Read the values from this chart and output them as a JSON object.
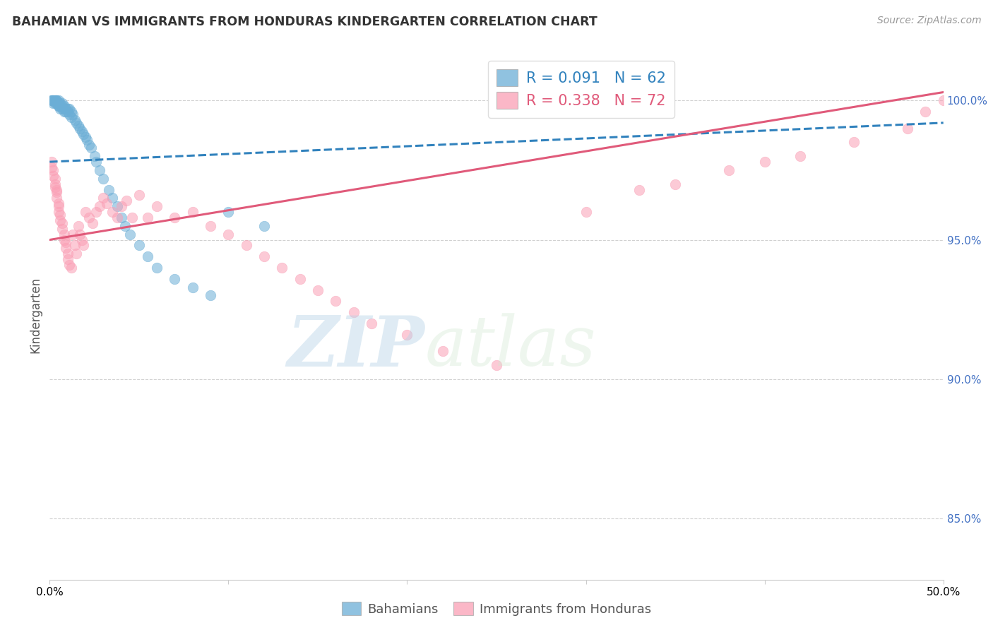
{
  "title": "BAHAMIAN VS IMMIGRANTS FROM HONDURAS KINDERGARTEN CORRELATION CHART",
  "source": "Source: ZipAtlas.com",
  "ylabel": "Kindergarten",
  "ytick_values": [
    0.85,
    0.9,
    0.95,
    1.0
  ],
  "xmin": 0.0,
  "xmax": 0.5,
  "ymin": 0.828,
  "ymax": 1.018,
  "blue_color": "#6baed6",
  "pink_color": "#fa9fb5",
  "blue_line_color": "#3182bd",
  "pink_line_color": "#e05a7a",
  "legend_label1": "Bahamians",
  "legend_label2": "Immigrants from Honduras",
  "blue_scatter_x": [
    0.001,
    0.001,
    0.002,
    0.002,
    0.002,
    0.003,
    0.003,
    0.003,
    0.004,
    0.004,
    0.004,
    0.004,
    0.005,
    0.005,
    0.005,
    0.005,
    0.006,
    0.006,
    0.006,
    0.007,
    0.007,
    0.007,
    0.008,
    0.008,
    0.008,
    0.009,
    0.009,
    0.01,
    0.01,
    0.011,
    0.011,
    0.012,
    0.012,
    0.013,
    0.014,
    0.015,
    0.016,
    0.017,
    0.018,
    0.019,
    0.02,
    0.021,
    0.022,
    0.023,
    0.025,
    0.026,
    0.028,
    0.03,
    0.033,
    0.035,
    0.038,
    0.04,
    0.042,
    0.045,
    0.05,
    0.055,
    0.06,
    0.07,
    0.08,
    0.09,
    0.1,
    0.12
  ],
  "blue_scatter_y": [
    1.0,
    1.0,
    1.0,
    1.0,
    0.999,
    1.0,
    1.0,
    0.999,
    1.0,
    1.0,
    0.999,
    0.999,
    1.0,
    0.999,
    0.998,
    0.998,
    0.999,
    0.998,
    0.997,
    0.999,
    0.998,
    0.997,
    0.998,
    0.997,
    0.996,
    0.997,
    0.996,
    0.997,
    0.996,
    0.997,
    0.995,
    0.996,
    0.994,
    0.995,
    0.993,
    0.992,
    0.991,
    0.99,
    0.989,
    0.988,
    0.987,
    0.986,
    0.984,
    0.983,
    0.98,
    0.978,
    0.975,
    0.972,
    0.968,
    0.965,
    0.962,
    0.958,
    0.955,
    0.952,
    0.948,
    0.944,
    0.94,
    0.936,
    0.933,
    0.93,
    0.96,
    0.955
  ],
  "pink_scatter_x": [
    0.001,
    0.001,
    0.002,
    0.002,
    0.003,
    0.003,
    0.003,
    0.004,
    0.004,
    0.004,
    0.005,
    0.005,
    0.005,
    0.006,
    0.006,
    0.007,
    0.007,
    0.008,
    0.008,
    0.009,
    0.009,
    0.01,
    0.01,
    0.011,
    0.012,
    0.013,
    0.014,
    0.015,
    0.016,
    0.017,
    0.018,
    0.019,
    0.02,
    0.022,
    0.024,
    0.026,
    0.028,
    0.03,
    0.032,
    0.035,
    0.038,
    0.04,
    0.043,
    0.046,
    0.05,
    0.055,
    0.06,
    0.07,
    0.08,
    0.09,
    0.1,
    0.11,
    0.12,
    0.13,
    0.14,
    0.15,
    0.16,
    0.17,
    0.18,
    0.2,
    0.22,
    0.25,
    0.3,
    0.33,
    0.35,
    0.38,
    0.4,
    0.42,
    0.45,
    0.48,
    0.49,
    0.5
  ],
  "pink_scatter_y": [
    0.978,
    0.976,
    0.975,
    0.973,
    0.972,
    0.97,
    0.969,
    0.968,
    0.967,
    0.965,
    0.963,
    0.962,
    0.96,
    0.959,
    0.957,
    0.956,
    0.954,
    0.952,
    0.95,
    0.949,
    0.947,
    0.945,
    0.943,
    0.941,
    0.94,
    0.952,
    0.948,
    0.945,
    0.955,
    0.952,
    0.95,
    0.948,
    0.96,
    0.958,
    0.956,
    0.96,
    0.962,
    0.965,
    0.963,
    0.96,
    0.958,
    0.962,
    0.964,
    0.958,
    0.966,
    0.958,
    0.962,
    0.958,
    0.96,
    0.955,
    0.952,
    0.948,
    0.944,
    0.94,
    0.936,
    0.932,
    0.928,
    0.924,
    0.92,
    0.916,
    0.91,
    0.905,
    0.96,
    0.968,
    0.97,
    0.975,
    0.978,
    0.98,
    0.985,
    0.99,
    0.996,
    1.0
  ],
  "blue_trendline_x": [
    0.0,
    0.5
  ],
  "blue_trendline_y": [
    0.978,
    0.992
  ],
  "pink_trendline_x": [
    0.0,
    0.5
  ],
  "pink_trendline_y": [
    0.95,
    1.003
  ],
  "watermark_zip": "ZIP",
  "watermark_atlas": "atlas",
  "background_color": "#ffffff"
}
